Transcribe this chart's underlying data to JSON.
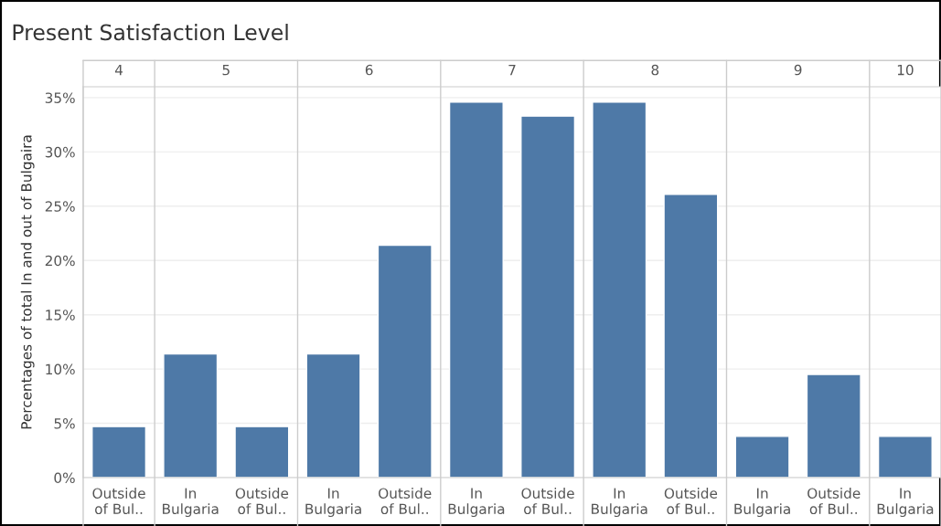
{
  "chart_data": {
    "type": "bar",
    "title": "Present Satisfaction Level",
    "ylabel": "Percentages of total In and out of Bulgaira",
    "categories": [
      "4",
      "5",
      "6",
      "7",
      "8",
      "9",
      "10"
    ],
    "series": [
      {
        "name": "In Bulgaria",
        "color": "#4e79a7",
        "values": [
          null,
          11.4,
          11.4,
          34.6,
          34.6,
          3.8,
          3.8
        ]
      },
      {
        "name": "Outside of Bul..",
        "color": "#4e79a7",
        "values": [
          4.7,
          4.7,
          21.4,
          33.3,
          26.1,
          9.5,
          null
        ]
      }
    ],
    "ylim": [
      0,
      36
    ],
    "yticks": [
      {
        "value": 0,
        "label": "0%"
      },
      {
        "value": 5,
        "label": "5%"
      },
      {
        "value": 10,
        "label": "10%"
      },
      {
        "value": 15,
        "label": "15%"
      },
      {
        "value": 20,
        "label": "20%"
      },
      {
        "value": 25,
        "label": "25%"
      },
      {
        "value": 30,
        "label": "30%"
      },
      {
        "value": 35,
        "label": "35%"
      }
    ],
    "grid": "y"
  }
}
